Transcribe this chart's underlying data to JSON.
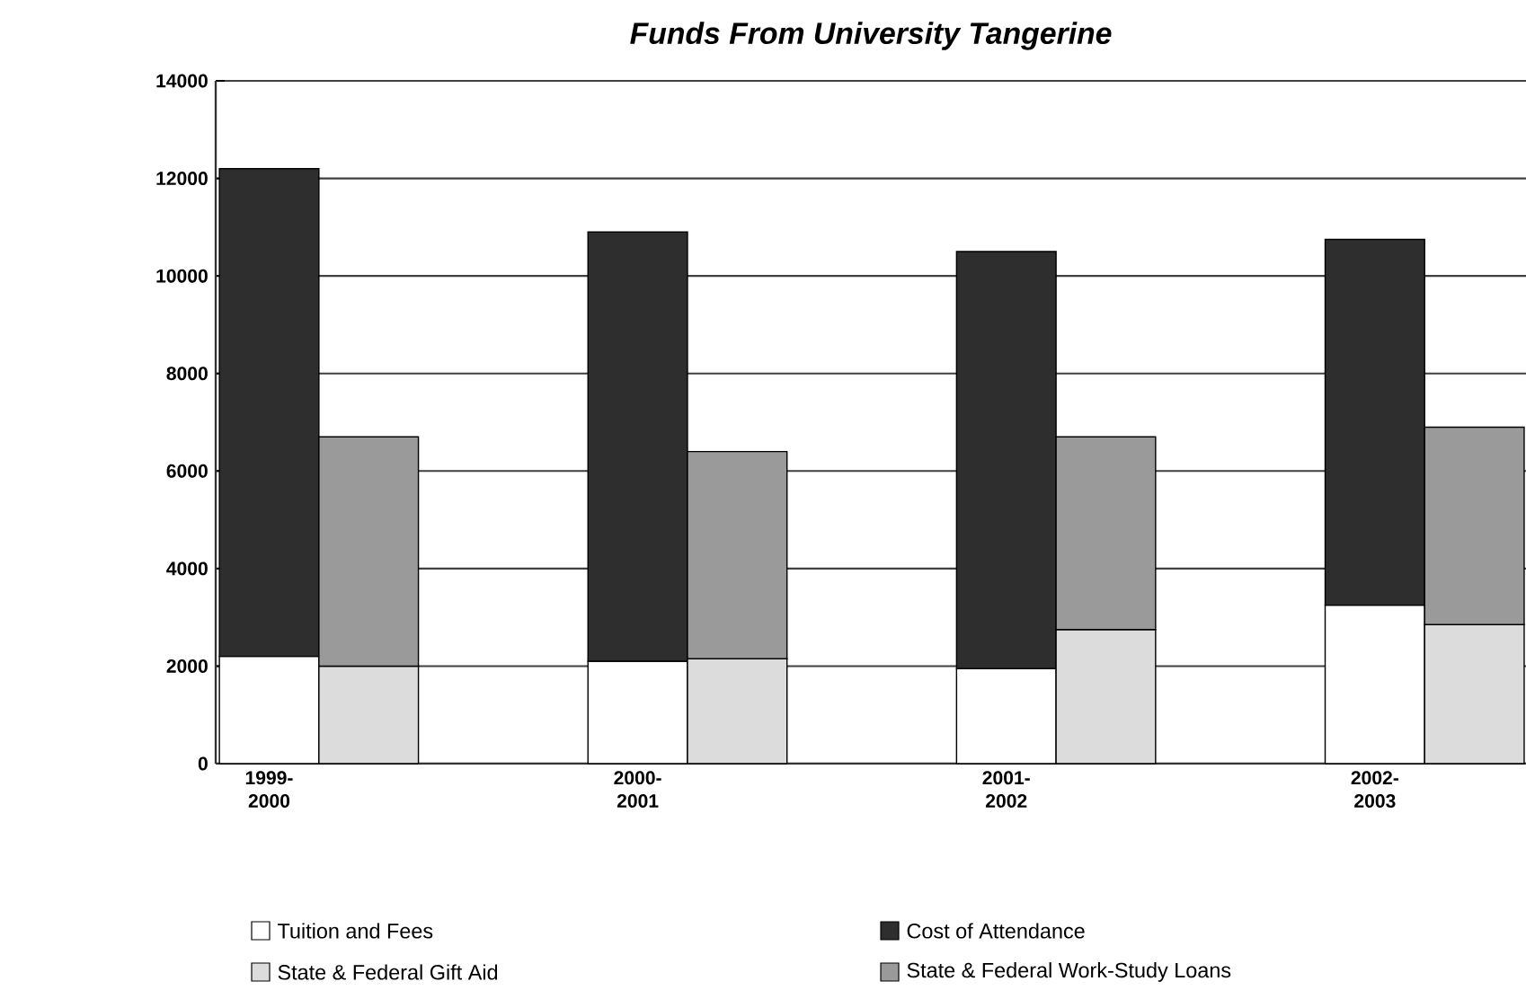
{
  "chart_data": {
    "type": "bar",
    "title": "Funds From University Tangerine",
    "categories": [
      "1999-2000",
      null,
      "2000-2001",
      null,
      "2001-2002",
      null,
      "2002-2003",
      null
    ],
    "stacked": true,
    "series": [
      {
        "name": "Tuition and Fees",
        "color": "#ffffff",
        "values": [
          2200,
          null,
          2100,
          null,
          1950,
          null,
          3250,
          null
        ]
      },
      {
        "name": "Cost of Attendance",
        "color": "#2e2e2e",
        "values": [
          10000,
          null,
          8800,
          null,
          8550,
          null,
          7500,
          null
        ]
      },
      {
        "name": "State & Federal Gift Aid",
        "color": "#dcdcdc",
        "values": [
          null,
          2000,
          null,
          2150,
          null,
          2750,
          null,
          2850
        ]
      },
      {
        "name": "State & Federal Work-Study Loans",
        "color": "#9a9a9a",
        "values": [
          null,
          4700,
          null,
          4250,
          null,
          3950,
          null,
          4050
        ]
      }
    ],
    "ylim": [
      0,
      14000
    ],
    "yticks": [
      0,
      2000,
      4000,
      6000,
      8000,
      10000,
      12000,
      14000
    ],
    "grid": "y",
    "legend": "bottom"
  }
}
